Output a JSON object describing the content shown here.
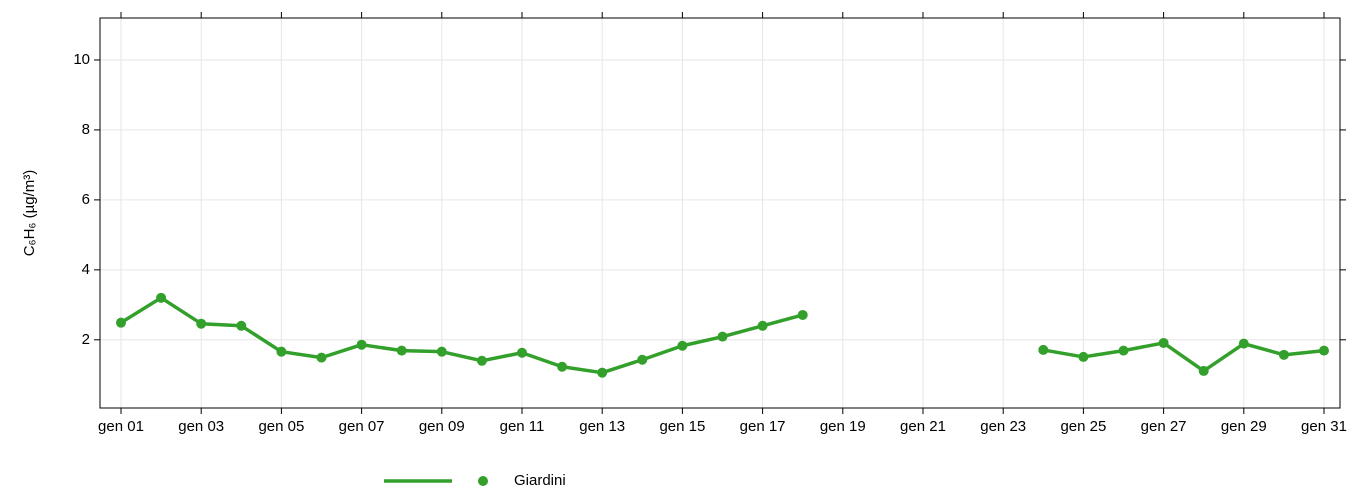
{
  "chart_data": {
    "type": "line",
    "y_label": "C₆H₆ (µg/m³)",
    "categories": [
      "gen 01",
      null,
      "gen 03",
      null,
      "gen 05",
      null,
      "gen 07",
      null,
      "gen 09",
      null,
      "gen 11",
      null,
      "gen 13",
      null,
      "gen 15",
      null,
      "gen 17",
      null,
      "gen 19",
      null,
      "gen 21",
      null,
      "gen 23",
      null,
      "gen 25",
      null,
      "gen 27",
      null,
      "gen 29",
      null,
      "gen 31"
    ],
    "series": [
      {
        "name": "Giardini",
        "color": "#33a02c",
        "values": [
          2.49,
          3.2,
          2.46,
          2.4,
          1.66,
          1.49,
          1.86,
          1.69,
          1.66,
          1.4,
          1.63,
          1.23,
          1.06,
          1.43,
          1.83,
          2.09,
          2.4,
          2.71,
          null,
          null,
          null,
          null,
          null,
          1.71,
          1.51,
          1.69,
          1.91,
          1.11,
          1.89,
          1.57,
          1.69
        ]
      }
    ],
    "ylim": [
      0.05,
      11.2
    ],
    "yticks": [
      2,
      4,
      6,
      8,
      10
    ],
    "grid": true,
    "legend": "bottom"
  }
}
